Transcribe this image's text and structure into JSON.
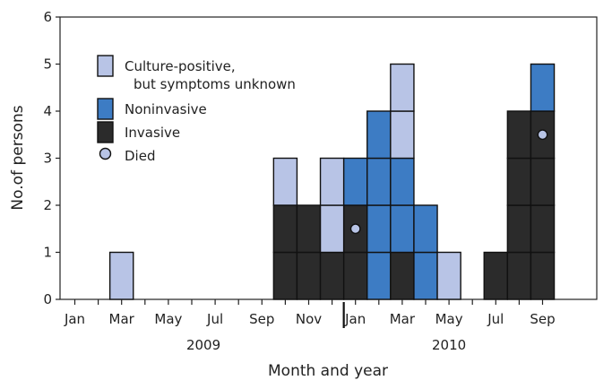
{
  "chart_data": {
    "type": "bar",
    "stacked": true,
    "xlabel": "Month and year",
    "ylabel": "No.of persons",
    "ylim": [
      0,
      6
    ],
    "yticks": [
      0,
      1,
      2,
      3,
      4,
      5,
      6
    ],
    "years": [
      {
        "label": "2009",
        "start_month": "2009-01",
        "end_month": "2009-12"
      },
      {
        "label": "2010",
        "start_month": "2010-01",
        "end_month": "2010-12"
      }
    ],
    "months": [
      "2009-01",
      "2009-02",
      "2009-03",
      "2009-04",
      "2009-05",
      "2009-06",
      "2009-07",
      "2009-08",
      "2009-09",
      "2009-10",
      "2009-11",
      "2009-12",
      "2010-01",
      "2010-02",
      "2010-03",
      "2010-04",
      "2010-05",
      "2010-06",
      "2010-07",
      "2010-08",
      "2010-09"
    ],
    "tick_labels": [
      {
        "month": "2009-01",
        "label": "Jan"
      },
      {
        "month": "2009-03",
        "label": "Mar"
      },
      {
        "month": "2009-05",
        "label": "May"
      },
      {
        "month": "2009-07",
        "label": "Jul"
      },
      {
        "month": "2009-09",
        "label": "Sep"
      },
      {
        "month": "2009-11",
        "label": "Nov"
      },
      {
        "month": "2010-01",
        "label": "Jan"
      },
      {
        "month": "2010-03",
        "label": "Mar"
      },
      {
        "month": "2010-05",
        "label": "May"
      },
      {
        "month": "2010-07",
        "label": "Jul"
      },
      {
        "month": "2010-09",
        "label": "Sep"
      }
    ],
    "series": [
      {
        "key": "invasive",
        "name": "Invasive",
        "color": "#2b2b2b",
        "values": [
          0,
          0,
          0,
          0,
          0,
          0,
          0,
          0,
          0,
          2,
          2,
          1,
          2,
          0,
          1,
          0,
          0,
          0,
          1,
          4,
          4
        ]
      },
      {
        "key": "noninvasive",
        "name": "Noninvasive",
        "color": "#3d7cc4",
        "values": [
          0,
          0,
          0,
          0,
          0,
          0,
          0,
          0,
          0,
          0,
          0,
          0,
          1,
          4,
          2,
          2,
          0,
          0,
          0,
          0,
          1
        ]
      },
      {
        "key": "culture",
        "name": "Culture-positive,\nbut symptoms unknown",
        "color": "#b8c4e6",
        "values": [
          0,
          0,
          1,
          0,
          0,
          0,
          0,
          0,
          0,
          1,
          0,
          2,
          0,
          0,
          2,
          0,
          1,
          0,
          0,
          0,
          0
        ]
      }
    ],
    "stack_order": [
      "invasive",
      "noninvasive",
      "culture"
    ],
    "died": {
      "name": "Died",
      "color": "#b8c4e6",
      "points": [
        {
          "month": "2010-01",
          "value": 1.5
        },
        {
          "month": "2010-09",
          "value": 3.5
        }
      ]
    },
    "legend": [
      {
        "key": "culture",
        "lines": [
          "Culture-positive,",
          "but symptoms unknown"
        ]
      },
      {
        "key": "noninvasive",
        "lines": [
          "Noninvasive"
        ]
      },
      {
        "key": "invasive",
        "lines": [
          "Invasive"
        ]
      },
      {
        "key": "died",
        "lines": [
          "Died"
        ]
      }
    ],
    "legend_position": "top-left"
  }
}
